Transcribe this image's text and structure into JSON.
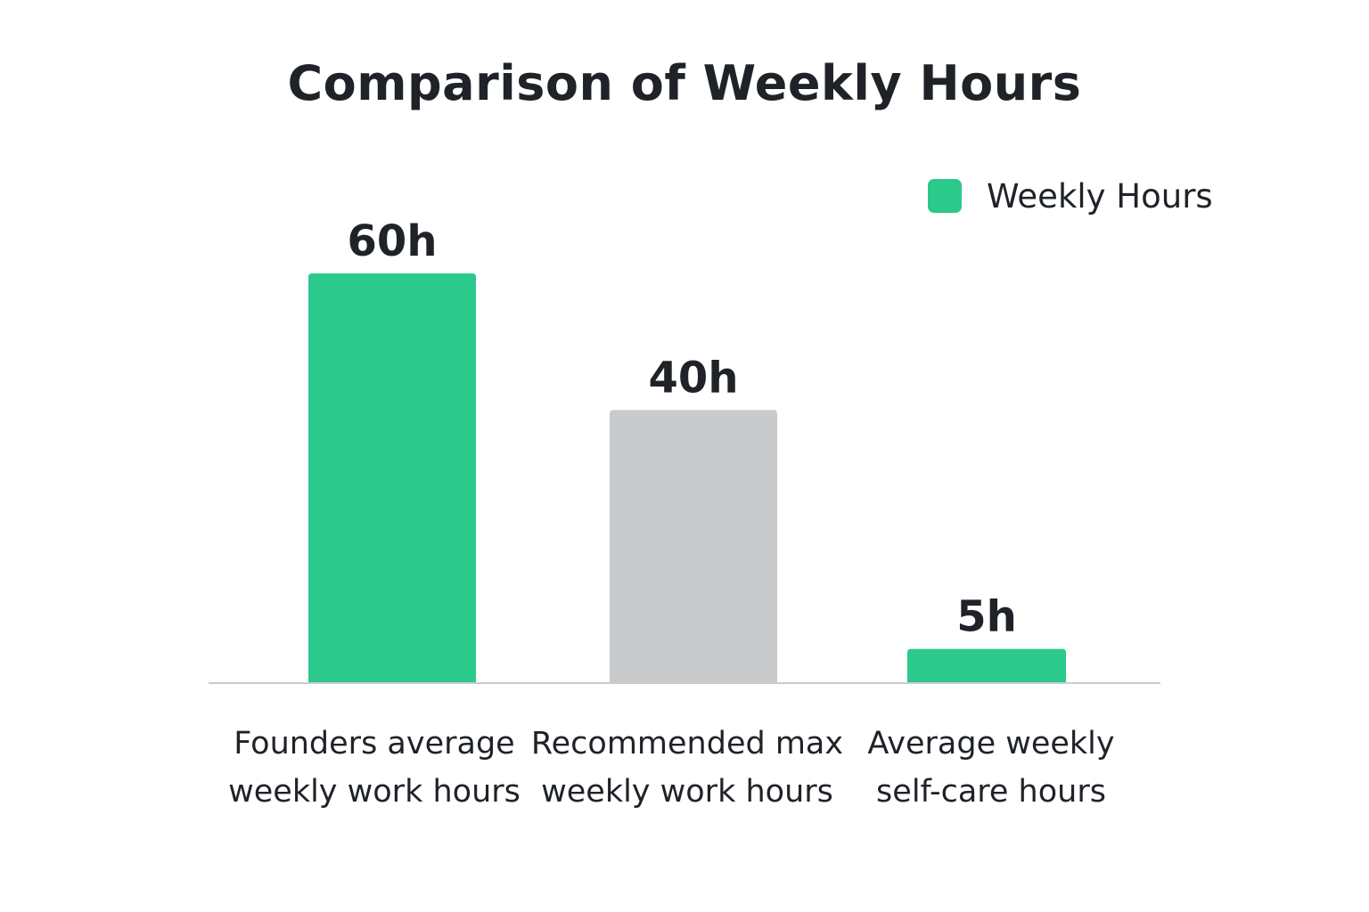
{
  "colors": {
    "green": "#2bc98c",
    "gray": "#c8cacc",
    "axis": "#c9cbcd",
    "text": "#1f2328"
  },
  "legend": {
    "label": "Weekly Hours",
    "color": "#2bc98c"
  },
  "chart_data": {
    "type": "bar",
    "title": "Comparison of Weekly Hours",
    "categories": [
      "Founders average weekly work hours",
      "Recommended max weekly work hours",
      "Average weekly self-care hours"
    ],
    "series": [
      {
        "name": "Weekly Hours",
        "values": [
          60,
          40,
          5
        ]
      }
    ],
    "data_labels": [
      "60h",
      "40h",
      "5h"
    ],
    "bar_colors": [
      "#2bc98c",
      "#c8cacc",
      "#2bc98c"
    ],
    "xlabel": "",
    "ylabel": "",
    "ylim": [
      0,
      60
    ],
    "grid": false,
    "legend_position": "top-right"
  }
}
